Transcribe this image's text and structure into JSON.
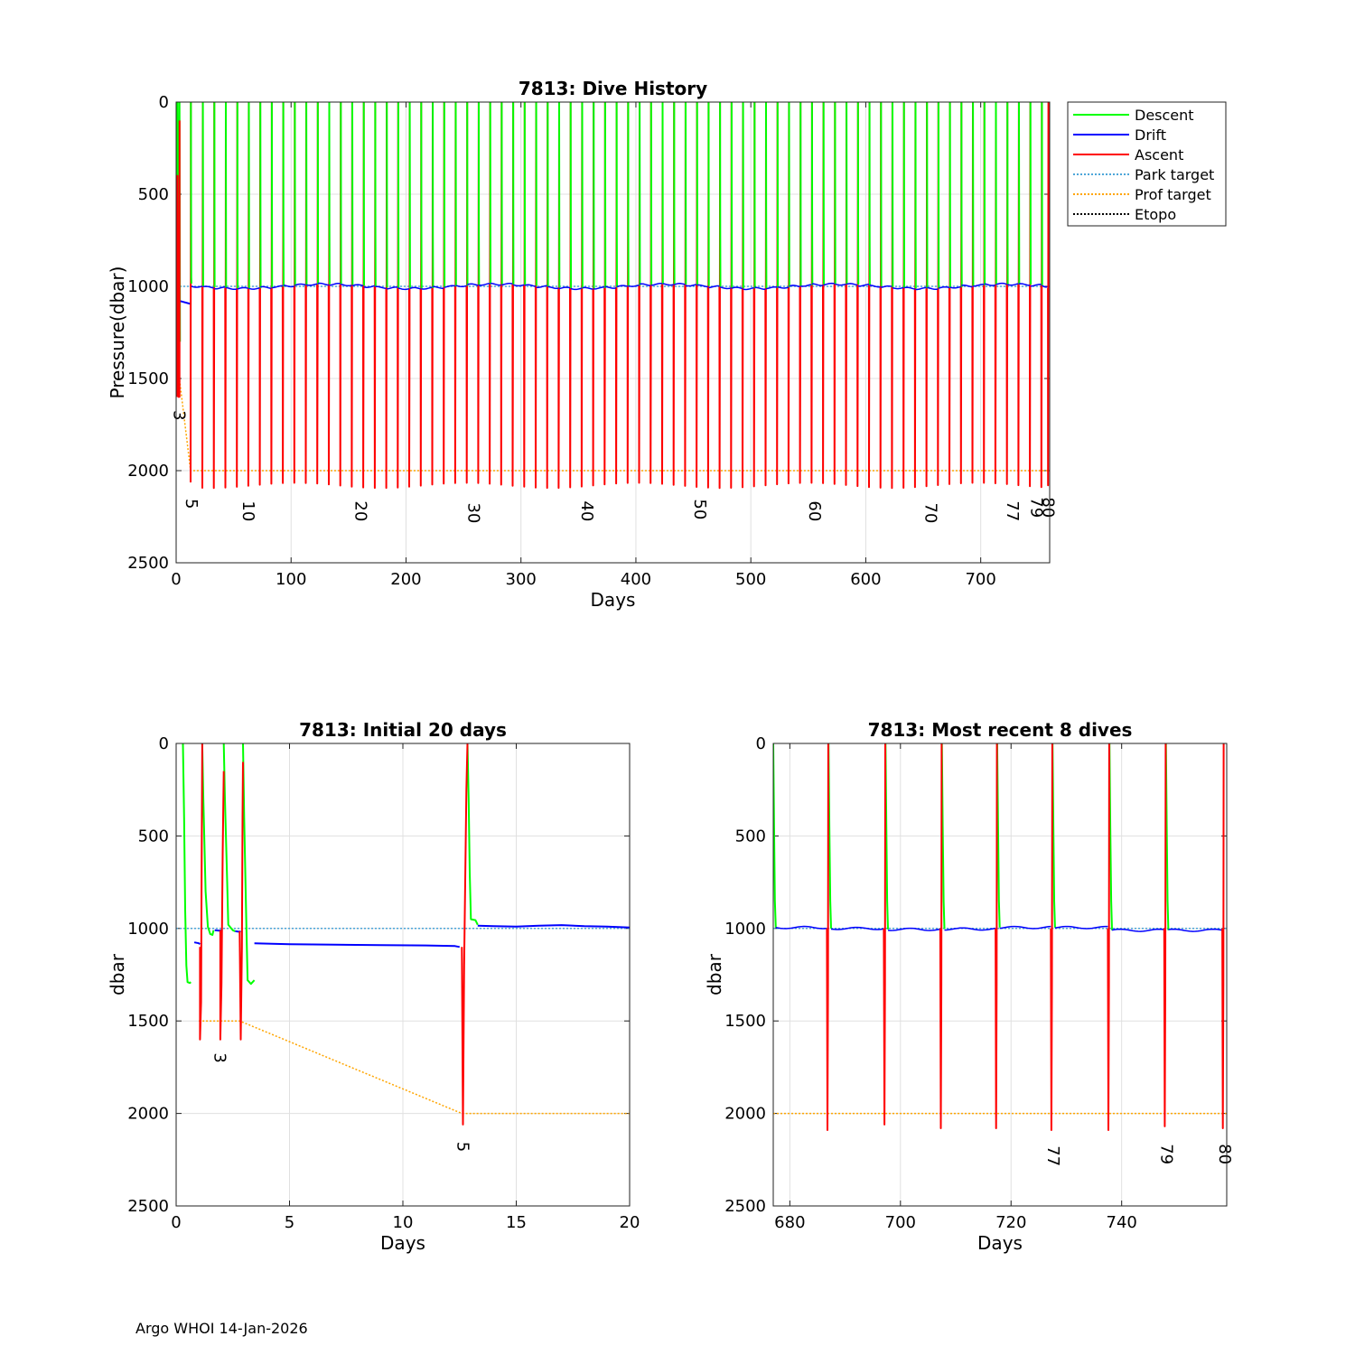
{
  "footer": "Argo WHOI 14-Jan-2026",
  "colors": {
    "descent": "#00ff00",
    "drift": "#0000ff",
    "ascent": "#ff0000",
    "park_target": "#4da6d9",
    "prof_target": "#ffa500",
    "etopo": "#000000",
    "grid": "#e0e0e0"
  },
  "chart_data": [
    {
      "id": "dive-history",
      "type": "line",
      "title": "7813: Dive History",
      "xlabel": "Days",
      "ylabel": "Pressure(dbar)",
      "xlim": [
        0,
        760
      ],
      "ylim": [
        0,
        2500
      ],
      "y_reversed": true,
      "xticks": [
        0,
        100,
        200,
        300,
        400,
        500,
        600,
        700
      ],
      "yticks": [
        0,
        500,
        1000,
        1500,
        2000,
        2500
      ],
      "grid": true,
      "legend_position": "outside-top-right",
      "legend": [
        "Descent",
        "Drift",
        "Ascent",
        "Park target",
        "Prof target",
        "Etopo"
      ],
      "park_target": 1000,
      "prof_target": 2000,
      "dive_period_days": 10,
      "drift_pressure_approx": 1000,
      "profile_bottom_approx": 2080,
      "cycle_labels": [
        {
          "label": "3",
          "day": 1.8,
          "pressure": 1700
        },
        {
          "label": "5",
          "day": 12.6,
          "pressure": 2180
        },
        {
          "label": "10",
          "day": 62,
          "pressure": 2220
        },
        {
          "label": "20",
          "day": 160,
          "pressure": 2220
        },
        {
          "label": "30",
          "day": 258,
          "pressure": 2230
        },
        {
          "label": "40",
          "day": 357,
          "pressure": 2220
        },
        {
          "label": "50",
          "day": 455,
          "pressure": 2210
        },
        {
          "label": "60",
          "day": 555,
          "pressure": 2220
        },
        {
          "label": "70",
          "day": 656,
          "pressure": 2230
        },
        {
          "label": "77",
          "day": 727,
          "pressure": 2220
        },
        {
          "label": "79",
          "day": 748,
          "pressure": 2200
        },
        {
          "label": "80",
          "day": 758,
          "pressure": 2200
        }
      ]
    },
    {
      "id": "initial-20-days",
      "type": "line",
      "title": "7813: Initial 20 days",
      "xlabel": "Days",
      "ylabel": "dbar",
      "xlim": [
        0,
        20
      ],
      "ylim": [
        0,
        2500
      ],
      "y_reversed": true,
      "xticks": [
        0,
        5,
        10,
        15,
        20
      ],
      "yticks": [
        0,
        500,
        1000,
        1500,
        2000,
        2500
      ],
      "grid": true,
      "park_target": [
        [
          0,
          1000
        ],
        [
          20,
          1000
        ]
      ],
      "prof_target": [
        [
          1,
          1500
        ],
        [
          2.8,
          1500
        ],
        [
          12.6,
          2000
        ],
        [
          20,
          2000
        ]
      ],
      "descent": [
        [
          [
            0.3,
            0
          ],
          [
            0.35,
            400
          ],
          [
            0.4,
            900
          ],
          [
            0.45,
            1200
          ],
          [
            0.5,
            1290
          ],
          [
            0.6,
            1295
          ],
          [
            0.65,
            1290
          ]
        ],
        [
          [
            1.15,
            0
          ],
          [
            1.2,
            300
          ],
          [
            1.3,
            800
          ],
          [
            1.4,
            990
          ],
          [
            1.5,
            1030
          ],
          [
            1.6,
            1035
          ],
          [
            1.65,
            1010
          ]
        ],
        [
          [
            2.1,
            0
          ],
          [
            2.15,
            300
          ],
          [
            2.25,
            750
          ],
          [
            2.3,
            980
          ],
          [
            2.5,
            1010
          ],
          [
            2.6,
            1015
          ]
        ],
        [
          [
            2.95,
            0
          ],
          [
            3.0,
            400
          ],
          [
            3.1,
            1000
          ],
          [
            3.15,
            1280
          ],
          [
            3.3,
            1300
          ],
          [
            3.45,
            1280
          ]
        ],
        [
          [
            12.85,
            0
          ],
          [
            12.9,
            300
          ],
          [
            12.95,
            700
          ],
          [
            13.0,
            950
          ],
          [
            13.2,
            955
          ],
          [
            13.3,
            980
          ]
        ]
      ],
      "drift": [
        [
          [
            0.8,
            1075
          ],
          [
            1.0,
            1080
          ],
          [
            1.05,
            1085
          ]
        ],
        [
          [
            1.7,
            1010
          ],
          [
            1.9,
            1012
          ],
          [
            2.05,
            1010
          ]
        ],
        [
          [
            2.6,
            1015
          ],
          [
            2.8,
            1018
          ],
          [
            2.85,
            1015
          ]
        ],
        [
          [
            3.45,
            1080
          ],
          [
            5,
            1085
          ],
          [
            7,
            1088
          ],
          [
            9,
            1090
          ],
          [
            11,
            1092
          ],
          [
            12.3,
            1095
          ],
          [
            12.5,
            1100
          ]
        ],
        [
          [
            13.3,
            985
          ],
          [
            14,
            988
          ],
          [
            15,
            990
          ],
          [
            16,
            985
          ],
          [
            17,
            982
          ],
          [
            18,
            988
          ],
          [
            19,
            990
          ],
          [
            20,
            995
          ]
        ]
      ],
      "ascent": [
        [
          [
            1.05,
            1100
          ],
          [
            1.05,
            1600
          ],
          [
            1.1,
            1400
          ],
          [
            1.12,
            800
          ],
          [
            1.15,
            0
          ]
        ],
        [
          [
            1.95,
            1010
          ],
          [
            1.95,
            1600
          ],
          [
            2.0,
            1300
          ],
          [
            2.05,
            600
          ],
          [
            2.1,
            150
          ]
        ],
        [
          [
            2.8,
            1015
          ],
          [
            2.85,
            1600
          ],
          [
            2.9,
            1100
          ],
          [
            2.93,
            400
          ],
          [
            2.95,
            100
          ]
        ],
        [
          [
            12.6,
            1100
          ],
          [
            12.65,
            2060
          ],
          [
            12.7,
            1200
          ],
          [
            12.8,
            250
          ],
          [
            12.85,
            0
          ]
        ]
      ],
      "cycle_labels": [
        {
          "label": "3",
          "day": 1.9,
          "pressure": 1700
        },
        {
          "label": "5",
          "day": 12.6,
          "pressure": 2180
        }
      ]
    },
    {
      "id": "recent-8-dives",
      "type": "line",
      "title": "7813: Most recent 8 dives",
      "xlabel": "Days",
      "ylabel": "dbar",
      "xlim": [
        677,
        759
      ],
      "ylim": [
        0,
        2500
      ],
      "y_reversed": true,
      "xticks": [
        680,
        700,
        720,
        740
      ],
      "yticks": [
        0,
        500,
        1000,
        1500,
        2000,
        2500
      ],
      "grid": true,
      "park_target": 1000,
      "prof_target": 2000,
      "dive_days": [
        677,
        687,
        697.3,
        707.5,
        717.5,
        727.5,
        737.8,
        748
      ],
      "final_ascent_day": 758.5,
      "drift_levels": [
        995,
        1000,
        1005,
        1003,
        995,
        995,
        1010,
        1010
      ],
      "ascent_bottoms": [
        2090,
        2060,
        2080,
        2080,
        2090,
        2090,
        2070,
        2080
      ],
      "cycle_labels": [
        {
          "label": "77",
          "day": 727.5,
          "pressure": 2230
        },
        {
          "label": "79",
          "day": 748,
          "pressure": 2220
        },
        {
          "label": "80",
          "day": 758.5,
          "pressure": 2220
        }
      ]
    }
  ]
}
